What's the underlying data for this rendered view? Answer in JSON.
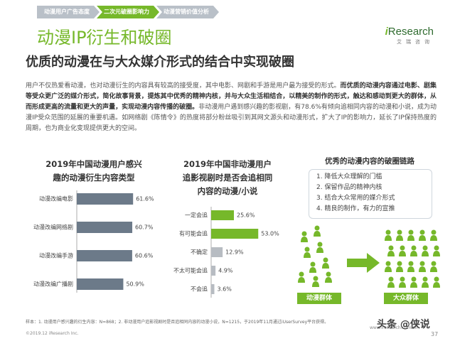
{
  "tabs": [
    "动漫用户广告态度",
    "二次元破圈影响力",
    "动漫营销价值分析"
  ],
  "active_tab": 1,
  "logo": {
    "brand_i": "i",
    "brand": "Research",
    "sub": "艾瑞咨询"
  },
  "title": "动漫IP衍生和破圈",
  "subtitle": "优质的动漫在与大众媒介形式的结合中实现破圈",
  "paragraph": {
    "p1": "用户不仅热爱看动漫，也对动漫衍生的内容具有较高的接受度，其中电影、网剧和手游是用户最为接受的形式。",
    "p2": "而优质的动漫内容通过电影、剧集等受众更广泛的媒介形式，简化故事背景，提炼其中优秀的精神内核，并与大众生活相结合，以精美的制作的形式，触达和感动到更大的群体，从而形成更高的流量和更大的声量，实现动漫内容传播的破圈。",
    "p3": "非动漫用户遇到感兴趣的影视剧，有78.6%有倾向追相同内容的动漫和小说，成为动漫IP受众范围的延展的重要机遇。如网络剧《陈情令》的热度将部分粉丝吸引到其网文源头和动漫形式，扩大了IP的影响力，延长了IP保持热度的周期，也为商业化变现提供更大的空间。"
  },
  "chart_data": [
    {
      "type": "bar",
      "title": "2019年中国动漫用户感兴趣的动漫衍生内容类型",
      "title_lines": [
        "2019年中国动漫用户感兴",
        "趣的动漫衍生内容类型"
      ],
      "categories": [
        "动漫改编电影",
        "动漫改编网络剧",
        "动漫改编手游",
        "动漫改编广播剧"
      ],
      "values": [
        61.6,
        60.7,
        60.6,
        50.9
      ],
      "value_labels": [
        "61.6%",
        "60.7%",
        "60.6%",
        "50.9%"
      ],
      "xlim": [
        0,
        70
      ],
      "color": "#6c7a89"
    },
    {
      "type": "bar",
      "title": "2019年中国非动漫用户追影视剧时是否会追相同内容的动漫/小说",
      "title_lines": [
        "2019年中国非动漫用户",
        "追影视剧时是否会追相同",
        "内容的动漫/小说"
      ],
      "categories": [
        "一定会追",
        "有可能会追",
        "不确定",
        "不太可能会追",
        "不会追"
      ],
      "values": [
        25.6,
        53.0,
        12.9,
        4.9,
        3.6
      ],
      "value_labels": [
        "25.6%",
        "53.0%",
        "12.9%",
        "4.9%",
        "3.6%"
      ],
      "xlim": [
        0,
        60
      ],
      "colors": [
        "#76b82a",
        "#76b82a",
        "#b7bcc2",
        "#b7bcc2",
        "#b7bcc2"
      ]
    }
  ],
  "diagram": {
    "title": "优秀的动漫内容的破圈链路",
    "items": [
      "1.  降低大众理解的门槛",
      "2.  保留作品的精神内核",
      "3.  结合大众常用的媒介形式",
      "4.  精良的制作，有力的宣推"
    ],
    "left_group": "动漫群体",
    "right_group": "大众群体",
    "person_color": "#76b82a"
  },
  "footnote": "样本：1. 动漫用户感兴趣的衍生内容：N=868；2. 非动漫用户追影视剧时是否追相同内容的动漫小说，N=1215，于2019年11月通过iUserSurvey平台获得。",
  "footer_left": "©2019.12 iResearch Inc.",
  "footer_right": "www.iresearch.com.cn",
  "watermark": "头条 @侠说",
  "page_number": "37"
}
